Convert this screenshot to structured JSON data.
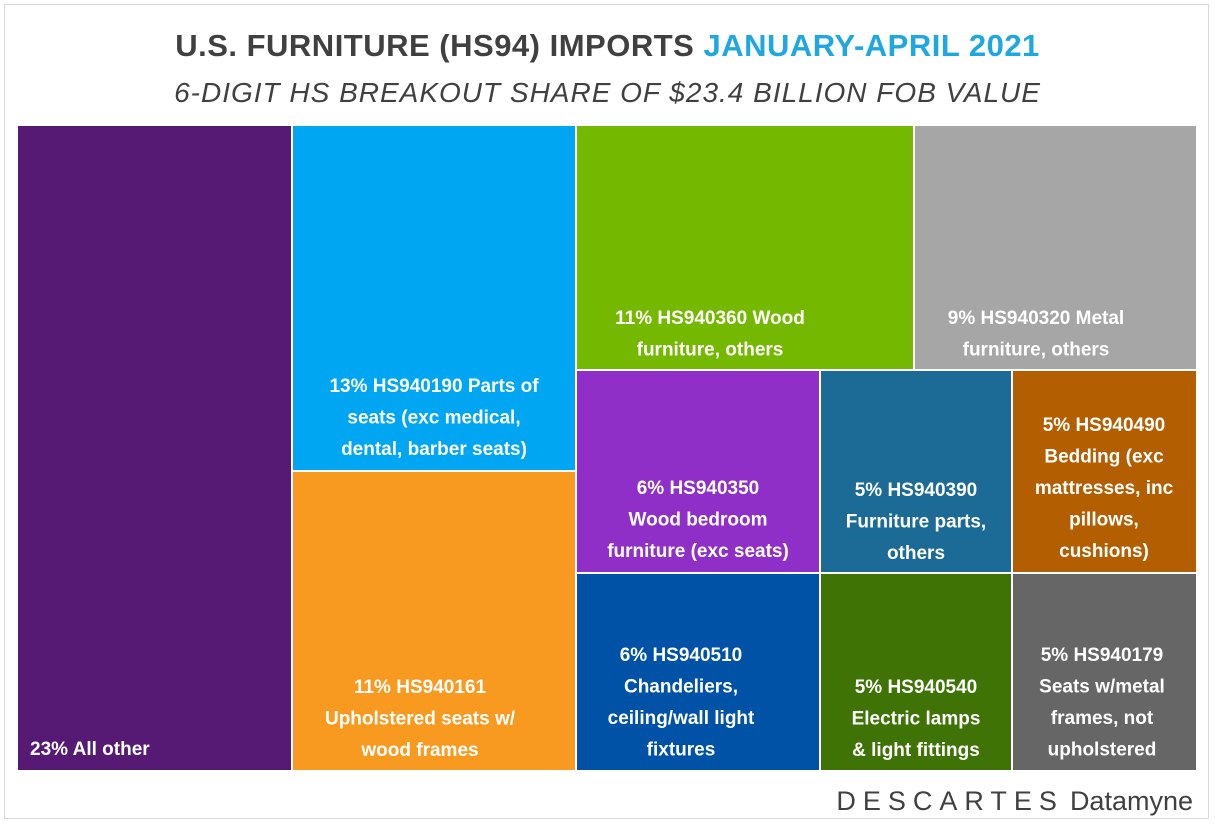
{
  "title": {
    "main": "U.S. FURNITURE (HS94) IMPORTS",
    "highlight": "JANUARY-APRIL 2021",
    "highlight_color": "#1fa8e0",
    "subtitle": "6-DIGIT HS BREAKOUT SHARE OF $23.4 BILLION FOB VALUE"
  },
  "chart_data": {
    "type": "treemap",
    "total": "$23.4 billion FOB value",
    "items": [
      {
        "share": 23,
        "label_lines": [
          "23% All other"
        ],
        "color": "#561a75"
      },
      {
        "share": 13,
        "code": "HS940190",
        "label_lines": [
          "13% HS940190 Parts of",
          "seats (exc medical,",
          "dental, barber seats)"
        ],
        "color": "#00a6f2"
      },
      {
        "share": 11,
        "code": "HS940161",
        "label_lines": [
          "11% HS940161",
          "Upholstered seats w/",
          "wood frames"
        ],
        "color": "#f99a20"
      },
      {
        "share": 11,
        "code": "HS940360",
        "label_lines": [
          "11% HS940360 Wood",
          "furniture, others"
        ],
        "color": "#74b900"
      },
      {
        "share": 9,
        "code": "HS940320",
        "label_lines": [
          "9% HS940320 Metal",
          "furniture, others"
        ],
        "color": "#a6a6a6"
      },
      {
        "share": 6,
        "code": "HS940350",
        "label_lines": [
          "6% HS940350",
          "Wood bedroom",
          "furniture (exc seats)"
        ],
        "color": "#8f2fc7"
      },
      {
        "share": 5,
        "code": "HS940390",
        "label_lines": [
          "5% HS940390",
          "Furniture parts,",
          "others"
        ],
        "color": "#1b6b96"
      },
      {
        "share": 5,
        "code": "HS940490",
        "label_lines": [
          "5% HS940490",
          "Bedding (exc",
          "mattresses, inc",
          "pillows,",
          "cushions)"
        ],
        "color": "#b35e00"
      },
      {
        "share": 6,
        "code": "HS940510",
        "label_lines": [
          "6% HS940510",
          "Chandeliers,",
          "ceiling/wall light",
          "fixtures"
        ],
        "color": "#0052a6"
      },
      {
        "share": 5,
        "code": "HS940540",
        "label_lines": [
          "5% HS940540",
          "Electric lamps",
          "& light fittings"
        ],
        "color": "#3f7306"
      },
      {
        "share": 5,
        "code": "HS940179",
        "label_lines": [
          "5% HS940179",
          "Seats w/metal",
          "frames, not",
          "upholstered"
        ],
        "color": "#666666"
      }
    ]
  },
  "brand": {
    "prefix": "DESCARTES",
    "suffix": "Datamyne"
  }
}
